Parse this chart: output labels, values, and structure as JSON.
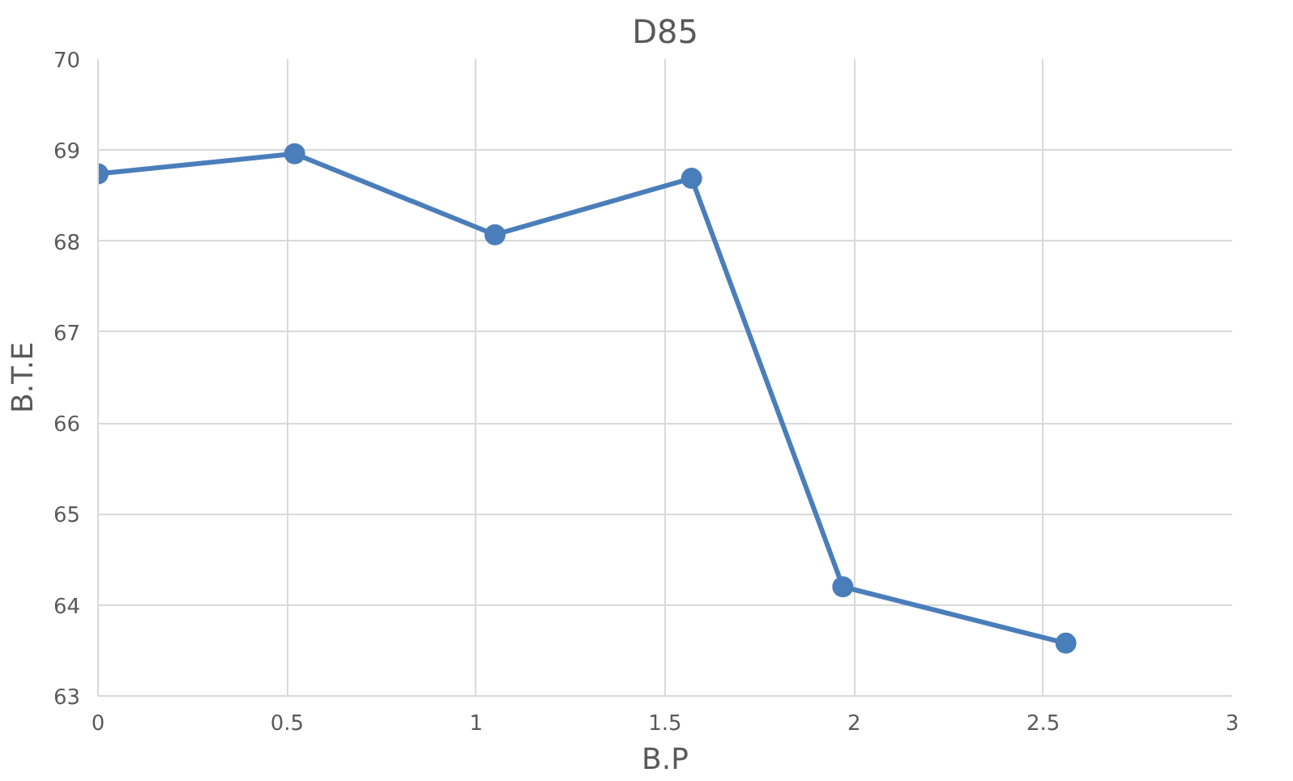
{
  "chart_data": {
    "type": "line",
    "title": "D85",
    "xlabel": "B.P",
    "ylabel": "B.T.E",
    "x": [
      0,
      0.52,
      1.05,
      1.57,
      1.97,
      2.56
    ],
    "series": [
      {
        "color": "#4a7ebb",
        "values": [
          68.74,
          68.96,
          68.07,
          68.69,
          64.2,
          63.58
        ]
      }
    ],
    "xlim": [
      0,
      3
    ],
    "xticks": [
      0,
      0.5,
      1,
      1.5,
      2,
      2.5,
      3
    ],
    "ylim": [
      63,
      70
    ],
    "yticks": [
      63,
      64,
      65,
      66,
      67,
      68,
      69,
      70
    ],
    "grid": true,
    "marker": "circle",
    "line_style": "solid"
  }
}
